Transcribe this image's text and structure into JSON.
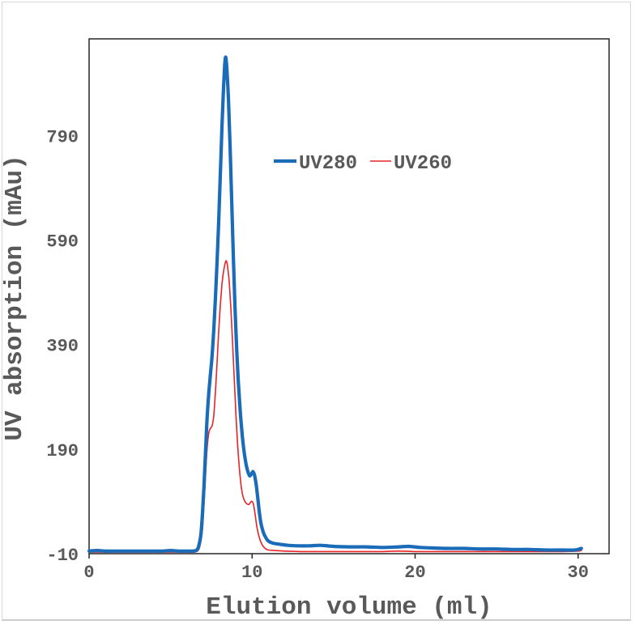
{
  "chart_data": {
    "type": "line",
    "title": "",
    "xlabel": "Elution volume (ml)",
    "ylabel": "UV absorption (mAu)",
    "xlim": [
      0,
      31.9
    ],
    "ylim": [
      -10,
      975
    ],
    "xticks": [
      0,
      10,
      20,
      30
    ],
    "yticks": [
      -10,
      190,
      390,
      590,
      790
    ],
    "grid": false,
    "legend_position": "inside-top-center",
    "frame_color": "#262626",
    "text_color": "#595959",
    "series": [
      {
        "name": "UV280",
        "color": "#1b6cb8",
        "stroke_width": 4.2,
        "points": [
          [
            0,
            -5
          ],
          [
            0.5,
            -4
          ],
          [
            1,
            -5
          ],
          [
            1.5,
            -5
          ],
          [
            2,
            -5
          ],
          [
            2.5,
            -5
          ],
          [
            3,
            -5
          ],
          [
            3.5,
            -5
          ],
          [
            4,
            -5
          ],
          [
            4.5,
            -5
          ],
          [
            5,
            -4
          ],
          [
            5.5,
            -5
          ],
          [
            6,
            -5
          ],
          [
            6.3,
            -5
          ],
          [
            6.55,
            -4
          ],
          [
            6.7,
            2
          ],
          [
            6.85,
            25
          ],
          [
            6.95,
            65
          ],
          [
            7.05,
            120
          ],
          [
            7.15,
            190
          ],
          [
            7.25,
            255
          ],
          [
            7.35,
            300
          ],
          [
            7.45,
            335
          ],
          [
            7.55,
            370
          ],
          [
            7.65,
            420
          ],
          [
            7.75,
            480
          ],
          [
            7.85,
            548
          ],
          [
            7.95,
            625
          ],
          [
            8.05,
            715
          ],
          [
            8.15,
            805
          ],
          [
            8.25,
            882
          ],
          [
            8.32,
            925
          ],
          [
            8.38,
            940
          ],
          [
            8.45,
            918
          ],
          [
            8.55,
            858
          ],
          [
            8.65,
            768
          ],
          [
            8.75,
            663
          ],
          [
            8.85,
            558
          ],
          [
            8.95,
            463
          ],
          [
            9.05,
            385
          ],
          [
            9.15,
            322
          ],
          [
            9.25,
            272
          ],
          [
            9.35,
            232
          ],
          [
            9.45,
            200
          ],
          [
            9.55,
            176
          ],
          [
            9.65,
            158
          ],
          [
            9.75,
            146
          ],
          [
            9.85,
            139
          ],
          [
            9.95,
            142
          ],
          [
            10.05,
            147
          ],
          [
            10.15,
            140
          ],
          [
            10.25,
            122
          ],
          [
            10.35,
            96
          ],
          [
            10.45,
            68
          ],
          [
            10.55,
            47
          ],
          [
            10.7,
            30
          ],
          [
            10.85,
            20
          ],
          [
            11,
            14
          ],
          [
            11.3,
            10
          ],
          [
            11.7,
            8
          ],
          [
            12.2,
            6
          ],
          [
            12.8,
            5
          ],
          [
            13.5,
            5
          ],
          [
            14.2,
            6
          ],
          [
            15,
            4
          ],
          [
            16,
            3
          ],
          [
            17,
            3
          ],
          [
            18,
            2
          ],
          [
            19,
            3
          ],
          [
            19.6,
            4
          ],
          [
            20.3,
            2
          ],
          [
            21,
            1
          ],
          [
            22,
            0
          ],
          [
            23,
            0
          ],
          [
            24,
            -1
          ],
          [
            25,
            -1
          ],
          [
            26,
            -2
          ],
          [
            27,
            -2
          ],
          [
            28,
            -3
          ],
          [
            29,
            -3
          ],
          [
            29.8,
            -3
          ],
          [
            30.2,
            0
          ]
        ]
      },
      {
        "name": "UV260",
        "color": "#e62327",
        "stroke_width": 1.6,
        "points": [
          [
            0,
            -7
          ],
          [
            0.5,
            -7
          ],
          [
            1,
            -7
          ],
          [
            1.5,
            -7
          ],
          [
            2,
            -7
          ],
          [
            2.5,
            -7
          ],
          [
            3,
            -7
          ],
          [
            3.5,
            -7
          ],
          [
            4,
            -7
          ],
          [
            4.5,
            -7
          ],
          [
            5,
            -7
          ],
          [
            5.5,
            -7
          ],
          [
            6,
            -7
          ],
          [
            6.4,
            -7
          ],
          [
            6.65,
            -5
          ],
          [
            6.8,
            5
          ],
          [
            6.95,
            35
          ],
          [
            7.05,
            85
          ],
          [
            7.15,
            145
          ],
          [
            7.25,
            195
          ],
          [
            7.35,
            222
          ],
          [
            7.45,
            230
          ],
          [
            7.55,
            235
          ],
          [
            7.65,
            255
          ],
          [
            7.75,
            300
          ],
          [
            7.85,
            355
          ],
          [
            7.95,
            415
          ],
          [
            8.05,
            465
          ],
          [
            8.15,
            505
          ],
          [
            8.25,
            530
          ],
          [
            8.35,
            546
          ],
          [
            8.42,
            550
          ],
          [
            8.5,
            538
          ],
          [
            8.6,
            508
          ],
          [
            8.7,
            458
          ],
          [
            8.8,
            395
          ],
          [
            8.9,
            328
          ],
          [
            9,
            262
          ],
          [
            9.1,
            205
          ],
          [
            9.2,
            160
          ],
          [
            9.3,
            127
          ],
          [
            9.4,
            105
          ],
          [
            9.5,
            94
          ],
          [
            9.6,
            88
          ],
          [
            9.7,
            85
          ],
          [
            9.8,
            84
          ],
          [
            9.9,
            88
          ],
          [
            10,
            90
          ],
          [
            10.1,
            82
          ],
          [
            10.2,
            62
          ],
          [
            10.3,
            40
          ],
          [
            10.45,
            20
          ],
          [
            10.6,
            8
          ],
          [
            10.8,
            0
          ],
          [
            11,
            -3
          ],
          [
            11.4,
            -4
          ],
          [
            12,
            -5
          ],
          [
            13,
            -6
          ],
          [
            14,
            -6
          ],
          [
            15,
            -6
          ],
          [
            16,
            -6
          ],
          [
            17,
            -6
          ],
          [
            18,
            -6
          ],
          [
            19,
            -5
          ],
          [
            20,
            -6
          ],
          [
            21,
            -6
          ],
          [
            22,
            -6
          ],
          [
            23,
            -6
          ],
          [
            24,
            -6
          ],
          [
            25,
            -6
          ],
          [
            26,
            -6
          ],
          [
            27,
            -6
          ],
          [
            28,
            -6
          ],
          [
            29,
            -6
          ],
          [
            30,
            -5
          ],
          [
            30.2,
            -4
          ]
        ]
      }
    ]
  }
}
